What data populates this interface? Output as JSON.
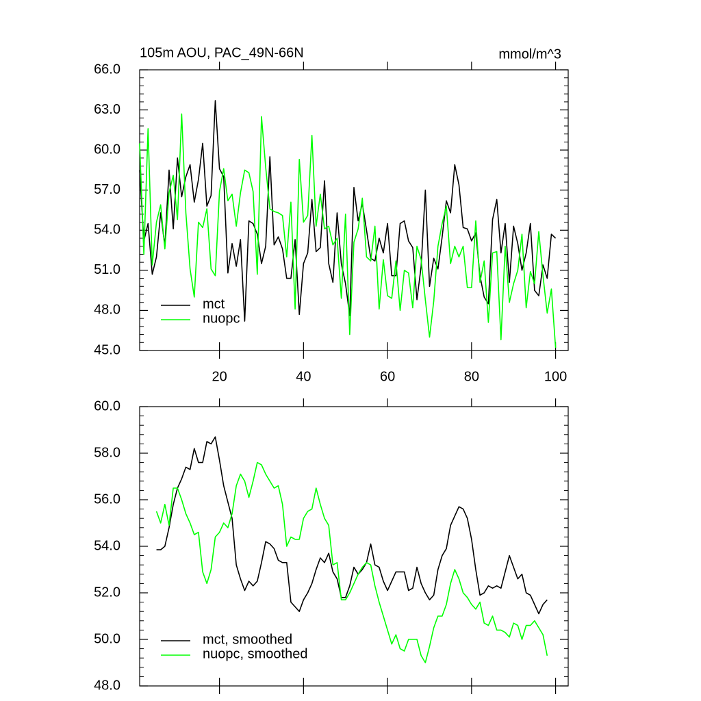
{
  "chart_data": [
    {
      "type": "line",
      "title": "105m AOU, PAC_49N-66N",
      "units": "mmol/m^3",
      "x": [
        1,
        2,
        3,
        4,
        5,
        6,
        7,
        8,
        9,
        10,
        11,
        12,
        13,
        14,
        15,
        16,
        17,
        18,
        19,
        20,
        21,
        22,
        23,
        24,
        25,
        26,
        27,
        28,
        29,
        30,
        31,
        32,
        33,
        34,
        35,
        36,
        37,
        38,
        39,
        40,
        41,
        42,
        43,
        44,
        45,
        46,
        47,
        48,
        49,
        50,
        51,
        52,
        53,
        54,
        55,
        56,
        57,
        58,
        59,
        60,
        61,
        62,
        63,
        64,
        65,
        66,
        67,
        68,
        69,
        70,
        71,
        72,
        73,
        74,
        75,
        76,
        77,
        78,
        79,
        80,
        81,
        82,
        83,
        84,
        85,
        86,
        87,
        88,
        89,
        90,
        91,
        92,
        93,
        94,
        95,
        96,
        97,
        98,
        99,
        100
      ],
      "series": [
        {
          "name": "mct",
          "color": "#000000",
          "values": [
            58.5,
            53.2,
            54.5,
            50.7,
            52.0,
            55.3,
            52.8,
            58.5,
            54.1,
            59.4,
            56.5,
            58.0,
            58.9,
            56.1,
            57.8,
            60.5,
            55.8,
            56.6,
            63.7,
            58.6,
            58.0,
            50.8,
            53.0,
            51.3,
            53.3,
            47.2,
            54.7,
            54.5,
            53.7,
            51.5,
            52.8,
            59.5,
            52.9,
            53.5,
            52.6,
            50.4,
            50.4,
            53.3,
            47.7,
            51.5,
            52.3,
            56.3,
            52.4,
            52.7,
            57.7,
            51.5,
            50.1,
            55.3,
            51.5,
            50.0,
            47.6,
            57.2,
            54.7,
            56.0,
            54.0,
            51.9,
            51.7,
            53.4,
            52.3,
            54.5,
            50.6,
            50.6,
            54.5,
            54.7,
            53.2,
            52.7,
            48.8,
            51.3,
            57.0,
            49.8,
            51.9,
            51.1,
            53.5,
            56.2,
            55.3,
            58.9,
            57.4,
            54.2,
            54.1,
            53.2,
            53.8,
            50.6,
            49.0,
            48.5,
            54.8,
            56.3,
            52.3,
            54.5,
            50.1,
            54.3,
            53.0,
            51.0,
            52.3,
            54.5,
            49.5,
            49.1,
            51.4,
            50.4,
            53.7,
            53.4
          ]
        },
        {
          "name": "nuopc",
          "color": "#00ff00",
          "values": [
            60.5,
            52.2,
            61.6,
            51.4,
            54.6,
            55.9,
            52.6,
            56.8,
            58.1,
            54.8,
            62.7,
            55.3,
            51.1,
            49.0,
            54.6,
            54.2,
            55.6,
            51.1,
            50.6,
            56.9,
            58.6,
            56.2,
            56.7,
            54.3,
            56.8,
            58.5,
            58.3,
            56.9,
            50.7,
            62.5,
            58.7,
            55.6,
            55.4,
            55.3,
            55.1,
            52.0,
            56.1,
            48.1,
            59.3,
            54.6,
            55.1,
            61.1,
            54.3,
            56.7,
            54.1,
            54.3,
            52.9,
            53.4,
            48.9,
            55.2,
            46.2,
            53.1,
            54.1,
            56.4,
            52.0,
            51.7,
            54.3,
            48.1,
            51.8,
            49.1,
            48.9,
            51.7,
            48.0,
            51.0,
            50.8,
            48.2,
            52.8,
            51.8,
            48.8,
            46.0,
            48.7,
            52.8,
            54.5,
            55.8,
            51.5,
            52.8,
            52.0,
            52.8,
            49.7,
            49.7,
            54.7,
            50.1,
            51.7,
            47.1,
            52.3,
            52.4,
            45.8,
            52.8,
            48.6,
            50.0,
            51.0,
            53.7,
            48.2,
            50.9,
            50.0,
            53.9,
            50.6,
            47.8,
            49.6,
            45.2
          ]
        }
      ],
      "xlim": [
        1,
        103
      ],
      "ylim": [
        45,
        66
      ],
      "xticks": [
        20,
        40,
        60,
        80,
        100
      ],
      "yticks": [
        {
          "value": 45,
          "label": "45.0"
        },
        {
          "value": 48,
          "label": "48.0"
        },
        {
          "value": 51,
          "label": "51.0"
        },
        {
          "value": 54,
          "label": "54.0"
        },
        {
          "value": 57,
          "label": "57.0"
        },
        {
          "value": 60,
          "label": "60.0"
        },
        {
          "value": 63,
          "label": "63.0"
        },
        {
          "value": 66,
          "label": "66.0"
        }
      ],
      "legend": "lower left"
    },
    {
      "type": "line",
      "x": [
        5,
        6,
        7,
        8,
        9,
        10,
        11,
        12,
        13,
        14,
        15,
        16,
        17,
        18,
        19,
        20,
        21,
        22,
        23,
        24,
        25,
        26,
        27,
        28,
        29,
        30,
        31,
        32,
        33,
        34,
        35,
        36,
        37,
        38,
        39,
        40,
        41,
        42,
        43,
        44,
        45,
        46,
        47,
        48,
        49,
        50,
        51,
        52,
        53,
        54,
        55,
        56,
        57,
        58,
        59,
        60,
        61,
        62,
        63,
        64,
        65,
        66,
        67,
        68,
        69,
        70,
        71,
        72,
        73,
        74,
        75,
        76,
        77,
        78,
        79,
        80,
        81,
        82,
        83,
        84,
        85,
        86,
        87,
        88,
        89,
        90,
        91,
        92,
        93,
        94,
        95,
        96,
        97,
        98
      ],
      "series": [
        {
          "name": "mct, smoothed",
          "color": "#000000",
          "values": [
            53.85,
            53.85,
            54.0,
            54.8,
            55.8,
            56.5,
            56.9,
            57.4,
            57.3,
            58.2,
            57.6,
            57.6,
            58.5,
            58.4,
            58.7,
            57.7,
            56.6,
            55.9,
            55.2,
            53.2,
            52.6,
            52.1,
            52.5,
            52.3,
            52.5,
            53.3,
            54.2,
            54.1,
            53.9,
            53.4,
            53.3,
            53.3,
            51.6,
            51.4,
            51.2,
            51.7,
            52.0,
            52.4,
            53.0,
            53.5,
            53.3,
            53.7,
            52.9,
            52.6,
            51.8,
            51.8,
            52.3,
            53.1,
            52.8,
            53.0,
            53.3,
            54.1,
            53.2,
            53.1,
            52.5,
            52.1,
            52.5,
            52.9,
            52.9,
            52.9,
            52.1,
            52.2,
            53.1,
            52.4,
            52.0,
            51.7,
            51.9,
            53.0,
            53.6,
            53.9,
            54.9,
            55.3,
            55.7,
            55.6,
            55.2,
            54.3,
            53.0,
            51.9,
            52.0,
            52.3,
            52.2,
            52.3,
            52.2,
            52.9,
            53.6,
            53.1,
            52.6,
            52.8,
            52.0,
            51.9,
            51.5,
            51.1,
            51.5,
            51.7
          ]
        },
        {
          "name": "nuopc, smoothed",
          "color": "#00ff00",
          "values": [
            55.5,
            55.0,
            55.8,
            54.9,
            56.5,
            56.5,
            56.0,
            55.4,
            55.0,
            54.5,
            54.6,
            52.9,
            52.4,
            53.0,
            54.4,
            54.6,
            55.0,
            54.8,
            55.4,
            56.6,
            57.1,
            56.8,
            56.1,
            56.8,
            57.6,
            57.5,
            57.1,
            56.8,
            56.5,
            56.6,
            55.8,
            54.0,
            54.4,
            54.3,
            54.3,
            55.2,
            55.5,
            55.6,
            56.5,
            55.8,
            55.2,
            54.9,
            53.2,
            53.3,
            51.7,
            51.7,
            52.0,
            52.4,
            52.8,
            53.1,
            53.3,
            53.2,
            52.3,
            51.6,
            51.0,
            50.4,
            49.8,
            50.2,
            49.6,
            49.5,
            50.0,
            50.0,
            50.0,
            49.3,
            49.0,
            49.7,
            50.5,
            51.0,
            51.0,
            51.5,
            52.4,
            53.0,
            52.6,
            52.0,
            51.8,
            51.5,
            51.3,
            51.6,
            50.7,
            50.6,
            51.0,
            50.4,
            50.4,
            50.3,
            50.1,
            50.7,
            50.6,
            50.0,
            50.6,
            50.6,
            50.8,
            50.5,
            50.2,
            49.3
          ]
        }
      ],
      "xlim": [
        1,
        103
      ],
      "ylim": [
        48,
        60
      ],
      "xticks": [
        20,
        40,
        60,
        80,
        100
      ],
      "yticks": [
        {
          "value": 48,
          "label": "48.0"
        },
        {
          "value": 50,
          "label": "50.0"
        },
        {
          "value": 52,
          "label": "52.0"
        },
        {
          "value": 54,
          "label": "54.0"
        },
        {
          "value": 56,
          "label": "56.0"
        },
        {
          "value": 58,
          "label": "58.0"
        },
        {
          "value": 60,
          "label": "60.0"
        }
      ],
      "legend": "lower left"
    }
  ]
}
